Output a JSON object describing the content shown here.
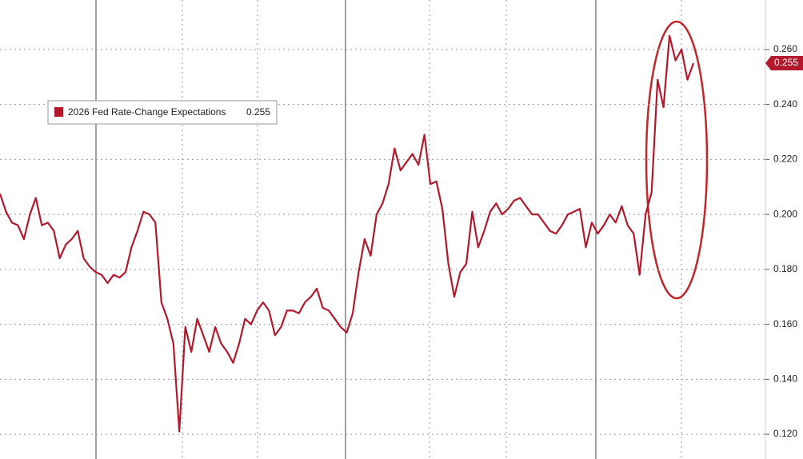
{
  "chart_data": {
    "type": "line",
    "series": [
      {
        "name": "2026 Fed Rate-Change Expectations",
        "color": "#b3192d",
        "values": [
          0.2075,
          0.201,
          0.197,
          0.196,
          0.191,
          0.2,
          0.206,
          0.196,
          0.197,
          0.194,
          0.184,
          0.189,
          0.191,
          0.194,
          0.184,
          0.181,
          0.179,
          0.178,
          0.175,
          0.178,
          0.177,
          0.179,
          0.188,
          0.194,
          0.201,
          0.2,
          0.197,
          0.168,
          0.162,
          0.153,
          0.121,
          0.159,
          0.15,
          0.162,
          0.156,
          0.15,
          0.159,
          0.153,
          0.15,
          0.146,
          0.153,
          0.162,
          0.16,
          0.165,
          0.168,
          0.165,
          0.156,
          0.159,
          0.165,
          0.165,
          0.164,
          0.168,
          0.17,
          0.173,
          0.166,
          0.165,
          0.162,
          0.159,
          0.157,
          0.164,
          0.179,
          0.191,
          0.185,
          0.2,
          0.204,
          0.211,
          0.224,
          0.216,
          0.219,
          0.222,
          0.218,
          0.229,
          0.211,
          0.212,
          0.202,
          0.182,
          0.17,
          0.179,
          0.182,
          0.201,
          0.188,
          0.194,
          0.201,
          0.204,
          0.2,
          0.202,
          0.205,
          0.206,
          0.203,
          0.2,
          0.2,
          0.197,
          0.194,
          0.193,
          0.196,
          0.2,
          0.201,
          0.202,
          0.188,
          0.197,
          0.193,
          0.196,
          0.2,
          0.197,
          0.203,
          0.196,
          0.193,
          0.178,
          0.2,
          0.208,
          0.249,
          0.239,
          0.265,
          0.256,
          0.26,
          0.249,
          0.255
        ]
      }
    ],
    "ylim": [
      0.111,
      0.278
    ],
    "yticks": [
      {
        "value": 0.12,
        "label": "0.120"
      },
      {
        "value": 0.14,
        "label": "0.140"
      },
      {
        "value": 0.16,
        "label": "0.160"
      },
      {
        "value": 0.18,
        "label": "0.180"
      },
      {
        "value": 0.2,
        "label": "0.200"
      },
      {
        "value": 0.22,
        "label": "0.220"
      },
      {
        "value": 0.24,
        "label": "0.240"
      },
      {
        "value": 0.26,
        "label": "0.260"
      }
    ],
    "grid": true
  }
}
